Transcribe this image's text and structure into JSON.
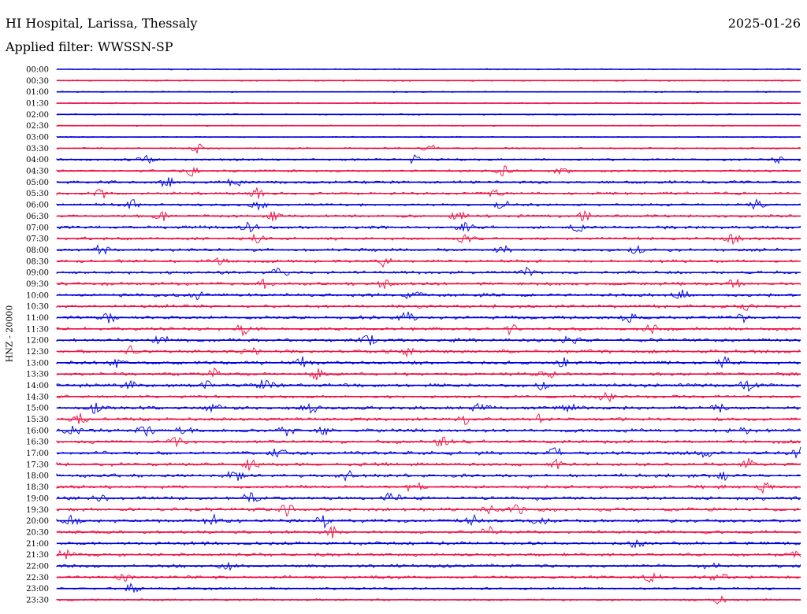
{
  "header": {
    "station": "HI Hospital, Larissa, Thessaly",
    "date": "2025-01-26",
    "filter_label": "Applied filter: WWSSN-SP"
  },
  "chart_data": {
    "type": "line",
    "title": "HI Hospital, Larissa, Thessaly",
    "subtitle": "Applied filter: WWSSN-SP",
    "date": "2025-01-26",
    "ylabel": "HNZ - 20000",
    "xlabel": "",
    "trace_colors": [
      "#0000dd",
      "#ee1144"
    ],
    "grid": false,
    "legend": "none",
    "rows": [
      {
        "label": "00:00",
        "activity": 0.05,
        "events": []
      },
      {
        "label": "00:30",
        "activity": 0.12,
        "events": []
      },
      {
        "label": "01:00",
        "activity": 0.05,
        "events": []
      },
      {
        "label": "01:30",
        "activity": 0.05,
        "events": []
      },
      {
        "label": "02:00",
        "activity": 0.12,
        "events": []
      },
      {
        "label": "02:30",
        "activity": 0.05,
        "events": []
      },
      {
        "label": "03:00",
        "activity": 0.05,
        "events": []
      },
      {
        "label": "03:30",
        "activity": 0.2,
        "events": [
          0.19,
          0.5
        ]
      },
      {
        "label": "04:00",
        "activity": 0.35,
        "events": [
          0.12,
          0.48,
          0.97
        ]
      },
      {
        "label": "04:30",
        "activity": 0.4,
        "events": [
          0.18,
          0.6,
          0.68
        ]
      },
      {
        "label": "05:00",
        "activity": 0.6,
        "events": [
          0.15,
          0.24
        ]
      },
      {
        "label": "05:30",
        "activity": 0.55,
        "events": [
          0.06,
          0.27,
          0.59
        ]
      },
      {
        "label": "06:00",
        "activity": 0.5,
        "events": [
          0.1,
          0.27,
          0.6,
          0.94
        ]
      },
      {
        "label": "06:30",
        "activity": 0.6,
        "events": [
          0.14,
          0.29,
          0.54,
          0.71
        ]
      },
      {
        "label": "07:00",
        "activity": 0.7,
        "events": [
          0.26,
          0.55,
          0.7
        ]
      },
      {
        "label": "07:30",
        "activity": 0.6,
        "events": [
          0.27,
          0.55,
          0.91
        ]
      },
      {
        "label": "08:00",
        "activity": 0.65,
        "events": [
          0.06,
          0.6,
          0.78
        ]
      },
      {
        "label": "08:30",
        "activity": 0.6,
        "events": [
          0.22,
          0.44
        ]
      },
      {
        "label": "09:00",
        "activity": 0.7,
        "events": [
          0.3,
          0.63
        ]
      },
      {
        "label": "09:30",
        "activity": 0.75,
        "events": [
          0.28,
          0.44,
          0.91
        ]
      },
      {
        "label": "10:00",
        "activity": 0.75,
        "events": [
          0.19,
          0.48,
          0.84
        ]
      },
      {
        "label": "10:30",
        "activity": 0.75,
        "events": [
          0.93
        ]
      },
      {
        "label": "11:00",
        "activity": 0.75,
        "events": [
          0.07,
          0.47,
          0.77,
          0.92
        ]
      },
      {
        "label": "11:30",
        "activity": 0.75,
        "events": [
          0.25,
          0.61,
          0.8
        ]
      },
      {
        "label": "12:00",
        "activity": 0.8,
        "events": [
          0.14,
          0.42,
          0.69
        ]
      },
      {
        "label": "12:30",
        "activity": 0.8,
        "events": [
          0.1,
          0.26,
          0.47
        ]
      },
      {
        "label": "13:00",
        "activity": 0.75,
        "events": [
          0.08,
          0.33,
          0.68,
          0.9
        ]
      },
      {
        "label": "13:30",
        "activity": 0.7,
        "events": [
          0.21,
          0.35,
          0.66
        ]
      },
      {
        "label": "14:00",
        "activity": 0.8,
        "events": [
          0.1,
          0.2,
          0.28,
          0.65,
          0.93
        ]
      },
      {
        "label": "14:30",
        "activity": 0.6,
        "events": [
          0.74
        ]
      },
      {
        "label": "15:00",
        "activity": 0.8,
        "events": [
          0.05,
          0.21,
          0.34,
          0.57,
          0.69,
          0.89
        ]
      },
      {
        "label": "15:30",
        "activity": 0.7,
        "events": [
          0.03,
          0.55,
          0.65
        ]
      },
      {
        "label": "16:00",
        "activity": 0.8,
        "events": [
          0.02,
          0.12,
          0.17,
          0.31,
          0.36,
          0.93
        ]
      },
      {
        "label": "16:30",
        "activity": 0.75,
        "events": [
          0.16,
          0.52
        ]
      },
      {
        "label": "17:00",
        "activity": 0.8,
        "events": [
          0.3,
          0.67,
          0.87,
          1.0
        ]
      },
      {
        "label": "17:30",
        "activity": 0.8,
        "events": [
          0.26,
          0.67,
          0.93
        ]
      },
      {
        "label": "18:00",
        "activity": 0.8,
        "events": [
          0.24,
          0.39,
          0.9
        ]
      },
      {
        "label": "18:30",
        "activity": 0.75,
        "events": [
          0.48,
          0.95
        ]
      },
      {
        "label": "19:00",
        "activity": 0.8,
        "events": [
          0.06,
          0.26,
          0.45
        ]
      },
      {
        "label": "19:30",
        "activity": 0.8,
        "events": [
          0.31,
          0.58,
          0.62
        ]
      },
      {
        "label": "20:00",
        "activity": 0.8,
        "events": [
          0.02,
          0.21,
          0.36,
          0.56,
          0.65
        ]
      },
      {
        "label": "20:30",
        "activity": 0.7,
        "events": [
          0.37,
          0.58
        ]
      },
      {
        "label": "21:00",
        "activity": 0.75,
        "events": [
          0.78
        ]
      },
      {
        "label": "21:30",
        "activity": 0.75,
        "events": [
          0.01,
          1.0
        ]
      },
      {
        "label": "22:00",
        "activity": 0.7,
        "events": [
          0.23,
          0.88
        ]
      },
      {
        "label": "22:30",
        "activity": 0.7,
        "events": [
          0.09,
          0.8,
          0.89
        ]
      },
      {
        "label": "23:00",
        "activity": 0.4,
        "events": [
          0.1
        ]
      },
      {
        "label": "23:30",
        "activity": 0.3,
        "events": [
          0.89
        ]
      }
    ]
  }
}
